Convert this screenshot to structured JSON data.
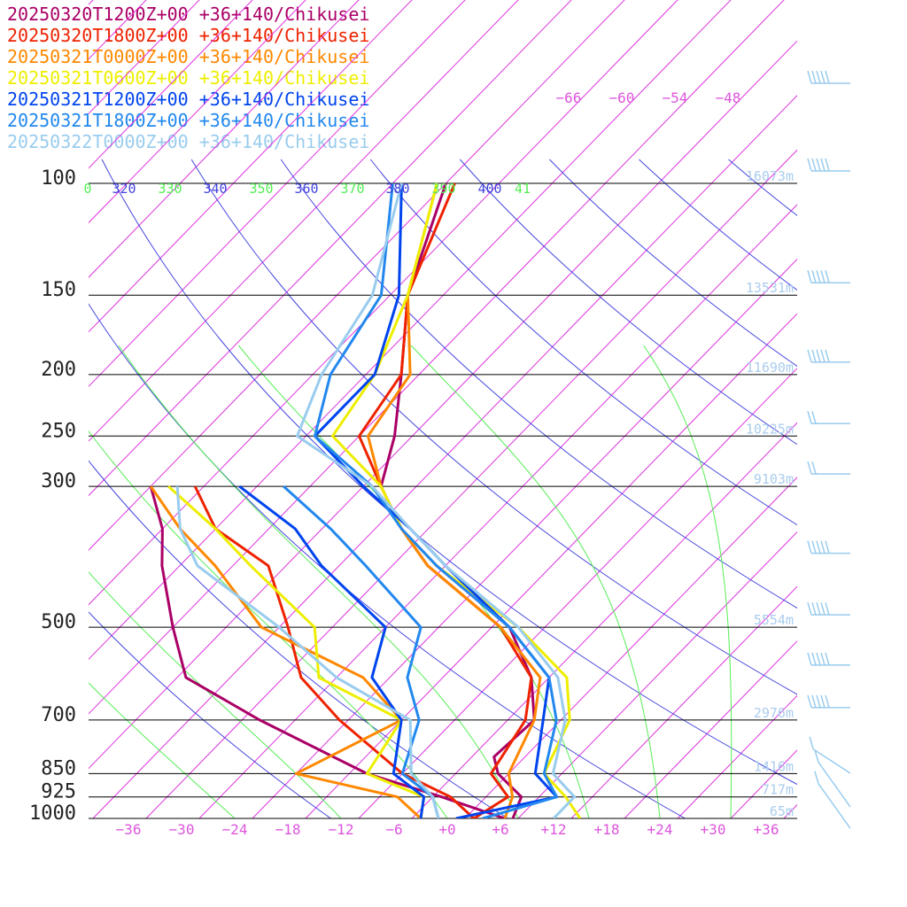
{
  "chart_data": {
    "type": "line",
    "subtype": "skew-T log-P sounding",
    "pressure_ticks": [
      100,
      150,
      200,
      250,
      300,
      500,
      700,
      850,
      925,
      1000
    ],
    "pressure_labels": [
      "100",
      "150",
      "200",
      "250",
      "300",
      "500",
      "700",
      "850",
      "925",
      "1000"
    ],
    "temp_ticks": [
      -36,
      -30,
      -24,
      -18,
      -12,
      -6,
      0,
      6,
      12,
      18,
      24,
      30,
      36
    ],
    "temp_labels": [
      "−36",
      "−30",
      "−24",
      "−18",
      "−12",
      "−6",
      "+0",
      "+6",
      "+12",
      "+18",
      "+24",
      "+30",
      "+36"
    ],
    "upper_temp_labels": [
      "−66",
      "−60",
      "−54",
      "−48"
    ],
    "theta_labels": [
      {
        "text": "0",
        "color": "#55ee55"
      },
      {
        "text": "320",
        "color": "#4444dd"
      },
      {
        "text": "330",
        "color": "#55ee55"
      },
      {
        "text": "340",
        "color": "#4444dd"
      },
      {
        "text": "350",
        "color": "#55ee55"
      },
      {
        "text": "360",
        "color": "#4444dd"
      },
      {
        "text": "370",
        "color": "#55ee55"
      },
      {
        "text": "380",
        "color": "#4444dd"
      },
      {
        "text": "390",
        "color": "#55ee55"
      },
      {
        "text": "400",
        "color": "#4444dd"
      },
      {
        "text": "41",
        "color": "#55ee55"
      }
    ],
    "height_labels": [
      {
        "p": 100,
        "text": "16073m"
      },
      {
        "p": 150,
        "text": "13531m"
      },
      {
        "p": 200,
        "text": "11690m"
      },
      {
        "p": 250,
        "text": "10225m"
      },
      {
        "p": 300,
        "text": "9103m"
      },
      {
        "p": 500,
        "text": "5554m"
      },
      {
        "p": 700,
        "text": "2976m"
      },
      {
        "p": 850,
        "text": "1416m"
      },
      {
        "p": 925,
        "text": "717m"
      },
      {
        "p": 1000,
        "text": "65m"
      }
    ],
    "series": [
      {
        "name": "20250320T1200Z+00 +36+140/Chikusei",
        "color": "#aa0066",
        "temperature": [
          [
            1000,
            7.4
          ],
          [
            925,
            6
          ],
          [
            850,
            0.8
          ],
          [
            800,
            -1.5
          ],
          [
            700,
            -1
          ],
          [
            600,
            -6
          ],
          [
            500,
            -14
          ],
          [
            400,
            -29
          ],
          [
            350,
            -37
          ],
          [
            300,
            -44
          ],
          [
            250,
            -48
          ],
          [
            200,
            -54
          ],
          [
            150,
            -62
          ],
          [
            100,
            -70
          ]
        ],
        "dewpoint": [
          [
            1000,
            6.5
          ],
          [
            925,
            -3
          ],
          [
            850,
            -14
          ],
          [
            700,
            -32
          ],
          [
            600,
            -45
          ],
          [
            500,
            -52
          ],
          [
            400,
            -60
          ],
          [
            350,
            -64
          ],
          [
            300,
            -70
          ]
        ]
      },
      {
        "name": "20250320T1800Z+00 +36+140/Chikusei",
        "color": "#ee2200",
        "temperature": [
          [
            1000,
            3
          ],
          [
            925,
            4.5
          ],
          [
            850,
            0
          ],
          [
            700,
            -2
          ],
          [
            600,
            -6
          ],
          [
            500,
            -15
          ],
          [
            400,
            -30
          ],
          [
            350,
            -37
          ],
          [
            300,
            -44
          ],
          [
            250,
            -52
          ],
          [
            200,
            -54
          ],
          [
            150,
            -62
          ],
          [
            100,
            -69
          ]
        ],
        "dewpoint": [
          [
            1000,
            3
          ],
          [
            925,
            -2
          ],
          [
            850,
            -10
          ],
          [
            700,
            -23
          ],
          [
            600,
            -32
          ],
          [
            500,
            -39
          ],
          [
            400,
            -48
          ],
          [
            350,
            -58
          ],
          [
            300,
            -65
          ]
        ]
      },
      {
        "name": "20250321T0000Z+00 +36+140/Chikusei",
        "color": "#ff8800",
        "temperature": [
          [
            1000,
            6.5
          ],
          [
            925,
            5
          ],
          [
            850,
            2
          ],
          [
            700,
            -1
          ],
          [
            600,
            -5
          ],
          [
            500,
            -15
          ],
          [
            400,
            -30
          ],
          [
            350,
            -37
          ],
          [
            300,
            -44
          ],
          [
            250,
            -51
          ],
          [
            200,
            -53
          ],
          [
            150,
            -62
          ],
          [
            100,
            -71
          ]
        ],
        "dewpoint": [
          [
            1000,
            -3
          ],
          [
            925,
            -8
          ],
          [
            850,
            -22
          ],
          [
            700,
            -16
          ],
          [
            600,
            -25
          ],
          [
            500,
            -42
          ],
          [
            400,
            -54
          ],
          [
            350,
            -62
          ],
          [
            300,
            -70
          ]
        ]
      },
      {
        "name": "20250321T0600Z+00 +36+140/Chikusei",
        "color": "#eeee00",
        "temperature": [
          [
            1000,
            15
          ],
          [
            925,
            11
          ],
          [
            850,
            6
          ],
          [
            700,
            3
          ],
          [
            600,
            -2
          ],
          [
            500,
            -13
          ],
          [
            400,
            -29
          ],
          [
            350,
            -37
          ],
          [
            300,
            -44
          ],
          [
            250,
            -55
          ],
          [
            200,
            -57
          ],
          [
            150,
            -62
          ],
          [
            100,
            -71
          ]
        ],
        "dewpoint": [
          [
            1000,
            -3
          ],
          [
            925,
            -5
          ],
          [
            850,
            -14
          ],
          [
            700,
            -16
          ],
          [
            600,
            -30
          ],
          [
            500,
            -36
          ],
          [
            400,
            -50
          ],
          [
            350,
            -58
          ],
          [
            300,
            -68
          ]
        ]
      },
      {
        "name": "20250321T1200Z+00 +36+140/Chikusei",
        "color": "#0044ee",
        "temperature": [
          [
            1000,
            1
          ],
          [
            925,
            10
          ],
          [
            850,
            5
          ],
          [
            700,
            0
          ],
          [
            600,
            -4
          ],
          [
            500,
            -14
          ],
          [
            400,
            -28
          ],
          [
            350,
            -36
          ],
          [
            300,
            -46
          ],
          [
            250,
            -57
          ],
          [
            200,
            -57
          ],
          [
            150,
            -63
          ],
          [
            100,
            -75
          ]
        ],
        "dewpoint": [
          [
            1000,
            -3
          ],
          [
            925,
            -5
          ],
          [
            850,
            -11
          ],
          [
            700,
            -16
          ],
          [
            600,
            -24
          ],
          [
            500,
            -28
          ],
          [
            400,
            -42
          ],
          [
            350,
            -49
          ],
          [
            300,
            -60
          ]
        ]
      },
      {
        "name": "20250321T1800Z+00 +36+140/Chikusei",
        "color": "#2288ee",
        "temperature": [
          [
            1000,
            4
          ],
          [
            925,
            10
          ],
          [
            850,
            6
          ],
          [
            700,
            1.5
          ],
          [
            600,
            -4
          ],
          [
            500,
            -14
          ],
          [
            400,
            -29
          ],
          [
            350,
            -37
          ],
          [
            300,
            -45
          ],
          [
            250,
            -57
          ],
          [
            200,
            -62
          ],
          [
            150,
            -65
          ],
          [
            100,
            -76
          ]
        ],
        "dewpoint": [
          [
            1000,
            -1
          ],
          [
            925,
            -4
          ],
          [
            850,
            -10
          ],
          [
            700,
            -14
          ],
          [
            600,
            -20
          ],
          [
            500,
            -24
          ],
          [
            400,
            -37
          ],
          [
            350,
            -45
          ],
          [
            300,
            -55
          ]
        ]
      },
      {
        "name": "20250322T0000Z+00 +36+140/Chikusei",
        "color": "#99ccee",
        "temperature": [
          [
            1000,
            12
          ],
          [
            925,
            12
          ],
          [
            850,
            7
          ],
          [
            700,
            2.5
          ],
          [
            600,
            -3
          ],
          [
            500,
            -13
          ],
          [
            400,
            -28
          ],
          [
            350,
            -36
          ],
          [
            300,
            -45
          ],
          [
            250,
            -59
          ],
          [
            200,
            -63
          ],
          [
            150,
            -66
          ],
          [
            100,
            -75
          ]
        ],
        "dewpoint": [
          [
            1000,
            -1
          ],
          [
            925,
            -4
          ],
          [
            850,
            -9
          ],
          [
            700,
            -15
          ],
          [
            600,
            -28
          ],
          [
            500,
            -40
          ],
          [
            400,
            -56
          ],
          [
            350,
            -62
          ],
          [
            300,
            -67
          ]
        ]
      }
    ],
    "wind_barbs": [
      {
        "p": 80,
        "dir": "W",
        "speed": "strong"
      },
      {
        "p": 90,
        "dir": "W",
        "speed": "strong"
      },
      {
        "p": 100,
        "dir": "W",
        "speed": "strong"
      },
      {
        "p": 150,
        "dir": "W",
        "speed": "strong"
      },
      {
        "p": 200,
        "dir": "W",
        "speed": "strong"
      },
      {
        "p": 250,
        "dir": "W",
        "speed": "moderate"
      },
      {
        "p": 300,
        "dir": "W",
        "speed": "moderate"
      },
      {
        "p": 400,
        "dir": "W",
        "speed": "strong"
      },
      {
        "p": 500,
        "dir": "W",
        "speed": "strong"
      },
      {
        "p": 600,
        "dir": "W",
        "speed": "strong"
      },
      {
        "p": 700,
        "dir": "W",
        "speed": "strong"
      },
      {
        "p": 850,
        "dir": "WSW",
        "speed": "light"
      },
      {
        "p": 925,
        "dir": "SW",
        "speed": "light"
      },
      {
        "p": 1000,
        "dir": "SW",
        "speed": "light"
      }
    ],
    "colors": {
      "isotherm": "#dd33dd",
      "dry_adiabat": "#4444dd",
      "moist_adiabat": "#55ee55",
      "isobar": "#000000",
      "height_label": "#aaccee",
      "wind_barb": "#99ccee",
      "axis_label": "#dd55dd"
    }
  }
}
